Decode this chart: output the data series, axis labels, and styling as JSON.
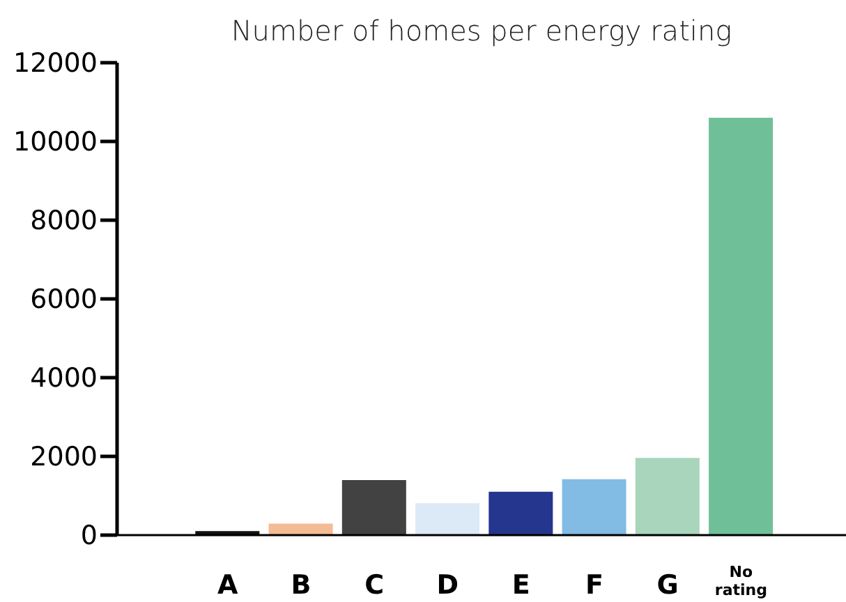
{
  "chart_data": {
    "type": "bar",
    "title": "Number of homes per energy rating",
    "categories": [
      "A",
      "B",
      "C",
      "D",
      "E",
      "F",
      "G",
      "No rating"
    ],
    "values": [
      100,
      290,
      1400,
      810,
      1100,
      1420,
      1960,
      10600
    ],
    "colors": [
      "#111111",
      "#f4bc94",
      "#424242",
      "#dce9f6",
      "#25368f",
      "#82bbe4",
      "#a8d5bb",
      "#6fc098"
    ],
    "ylim": [
      0,
      12000
    ],
    "yticks": [
      0,
      2000,
      4000,
      6000,
      8000,
      10000,
      12000
    ],
    "grid": false,
    "legend": false
  }
}
